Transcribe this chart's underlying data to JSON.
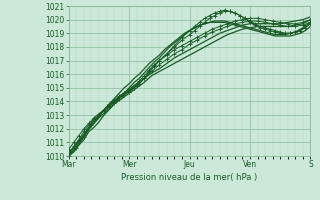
{
  "title": "",
  "xlabel": "Pression niveau de la mer( hPa )",
  "ylim": [
    1010,
    1021
  ],
  "yticks": [
    1010,
    1011,
    1012,
    1013,
    1014,
    1015,
    1016,
    1017,
    1018,
    1019,
    1020,
    1021
  ],
  "day_labels": [
    "Mar",
    "Mer",
    "Jeu",
    "Ven",
    "S"
  ],
  "day_positions": [
    0,
    48,
    96,
    144,
    192
  ],
  "bg_color": "#cce8d8",
  "grid_color_major": "#88bb99",
  "grid_color_minor": "#aad4bc",
  "line_color": "#1a5c28",
  "total_hours": 192,
  "lines": [
    {
      "x": [
        0,
        4,
        8,
        12,
        16,
        20,
        24,
        28,
        32,
        36,
        40,
        44,
        48,
        52,
        56,
        60,
        64,
        68,
        72,
        76,
        80,
        84,
        88,
        92,
        96,
        100,
        104,
        108,
        112,
        116,
        120,
        124,
        128,
        132,
        136,
        140,
        144,
        148,
        152,
        156,
        160,
        164,
        168,
        172,
        176,
        180,
        184,
        188,
        192
      ],
      "y": [
        1010.0,
        1010.3,
        1010.8,
        1011.2,
        1011.8,
        1012.1,
        1012.5,
        1013.0,
        1013.4,
        1013.8,
        1014.2,
        1014.6,
        1015.0,
        1015.4,
        1015.7,
        1016.1,
        1016.5,
        1016.9,
        1017.2,
        1017.6,
        1018.0,
        1018.3,
        1018.6,
        1018.9,
        1019.2,
        1019.4,
        1019.6,
        1019.7,
        1019.8,
        1019.8,
        1019.8,
        1019.8,
        1019.7,
        1019.6,
        1019.5,
        1019.4,
        1019.3,
        1019.2,
        1019.1,
        1019.0,
        1018.9,
        1018.8,
        1018.8,
        1018.8,
        1018.8,
        1018.9,
        1019.0,
        1019.2,
        1019.5
      ],
      "style": "smooth"
    },
    {
      "x": [
        0,
        4,
        8,
        12,
        16,
        20,
        24,
        28,
        32,
        36,
        40,
        44,
        48,
        52,
        56,
        60,
        64,
        68,
        72,
        76,
        80,
        84,
        88,
        92,
        96,
        100,
        104,
        108,
        112,
        116,
        120,
        124,
        128,
        132,
        136,
        140,
        144,
        148,
        152,
        156,
        160,
        164,
        168,
        172,
        176,
        180,
        184,
        188,
        192
      ],
      "y": [
        1010.0,
        1010.4,
        1010.9,
        1011.4,
        1012.0,
        1012.4,
        1012.9,
        1013.4,
        1013.8,
        1014.2,
        1014.6,
        1015.0,
        1015.3,
        1015.7,
        1016.0,
        1016.4,
        1016.8,
        1017.1,
        1017.4,
        1017.8,
        1018.1,
        1018.4,
        1018.7,
        1019.0,
        1019.2,
        1019.4,
        1019.6,
        1019.7,
        1019.8,
        1019.9,
        1019.9,
        1019.9,
        1019.8,
        1019.7,
        1019.6,
        1019.5,
        1019.4,
        1019.3,
        1019.2,
        1019.1,
        1019.0,
        1018.9,
        1018.9,
        1018.9,
        1019.0,
        1019.1,
        1019.3,
        1019.5,
        1019.8
      ],
      "style": "smooth"
    },
    {
      "x": [
        0,
        6,
        12,
        18,
        24,
        30,
        36,
        42,
        48,
        54,
        60,
        66,
        72,
        78,
        84,
        90,
        96,
        102,
        108,
        114,
        120,
        126,
        132,
        138,
        144,
        150,
        156,
        162,
        168,
        174,
        180,
        186,
        192
      ],
      "y": [
        1010.1,
        1010.8,
        1011.5,
        1012.2,
        1012.8,
        1013.3,
        1013.8,
        1014.2,
        1014.6,
        1015.0,
        1015.4,
        1015.9,
        1016.2,
        1016.5,
        1016.8,
        1017.1,
        1017.4,
        1017.7,
        1018.0,
        1018.3,
        1018.6,
        1018.9,
        1019.1,
        1019.3,
        1019.4,
        1019.5,
        1019.5,
        1019.5,
        1019.5,
        1019.5,
        1019.6,
        1019.7,
        1020.0
      ],
      "style": "smooth"
    },
    {
      "x": [
        0,
        6,
        12,
        18,
        24,
        30,
        36,
        42,
        48,
        54,
        60,
        66,
        72,
        78,
        84,
        90,
        96,
        102,
        108,
        114,
        120,
        126,
        132,
        138,
        144,
        150,
        156,
        162,
        168,
        174,
        180,
        186,
        192
      ],
      "y": [
        1010.2,
        1010.9,
        1011.6,
        1012.4,
        1013.0,
        1013.5,
        1014.0,
        1014.5,
        1014.9,
        1015.3,
        1015.7,
        1016.1,
        1016.4,
        1016.8,
        1017.2,
        1017.5,
        1017.8,
        1018.1,
        1018.4,
        1018.7,
        1019.0,
        1019.2,
        1019.4,
        1019.6,
        1019.7,
        1019.7,
        1019.7,
        1019.7,
        1019.7,
        1019.8,
        1019.9,
        1020.0,
        1020.2
      ],
      "style": "smooth"
    },
    {
      "x": [
        0,
        4,
        8,
        12,
        16,
        20,
        24,
        28,
        32,
        36,
        40,
        44,
        48,
        52,
        56,
        60,
        64,
        68,
        72,
        78,
        84,
        90,
        96,
        100,
        104,
        108,
        112,
        116,
        120,
        124,
        128,
        132,
        136,
        140,
        144,
        148,
        152,
        156,
        160,
        164,
        168,
        172,
        176,
        180,
        184,
        188,
        192
      ],
      "y": [
        1010.5,
        1011.0,
        1011.5,
        1012.0,
        1012.4,
        1012.8,
        1013.1,
        1013.4,
        1013.8,
        1014.1,
        1014.4,
        1014.6,
        1014.8,
        1015.0,
        1015.3,
        1015.7,
        1016.2,
        1016.6,
        1017.0,
        1017.5,
        1018.0,
        1018.5,
        1018.9,
        1019.2,
        1019.5,
        1019.8,
        1020.1,
        1020.3,
        1020.5,
        1020.6,
        1020.6,
        1020.5,
        1020.3,
        1020.1,
        1019.8,
        1019.6,
        1019.4,
        1019.3,
        1019.2,
        1019.1,
        1019.0,
        1019.0,
        1019.0,
        1019.1,
        1019.2,
        1019.5,
        1019.8
      ],
      "style": "dotted_marker"
    },
    {
      "x": [
        0,
        4,
        8,
        12,
        16,
        20,
        24,
        28,
        32,
        36,
        40,
        44,
        48,
        52,
        56,
        60,
        64,
        68,
        72,
        78,
        84,
        90,
        96,
        100,
        104,
        108,
        112,
        116,
        120,
        124,
        128,
        132,
        136,
        140,
        144,
        148,
        152,
        156,
        160,
        164,
        168,
        172,
        176,
        180,
        184,
        188,
        192
      ],
      "y": [
        1010.2,
        1010.7,
        1011.2,
        1011.8,
        1012.3,
        1012.7,
        1013.0,
        1013.3,
        1013.6,
        1013.9,
        1014.2,
        1014.5,
        1014.7,
        1015.0,
        1015.3,
        1015.7,
        1016.2,
        1016.6,
        1017.0,
        1017.5,
        1018.1,
        1018.7,
        1019.2,
        1019.5,
        1019.8,
        1020.1,
        1020.3,
        1020.5,
        1020.6,
        1020.7,
        1020.6,
        1020.5,
        1020.3,
        1020.1,
        1019.9,
        1019.7,
        1019.5,
        1019.4,
        1019.3,
        1019.2,
        1019.1,
        1019.0,
        1019.0,
        1019.1,
        1019.2,
        1019.4,
        1019.7
      ],
      "style": "dotted_marker"
    },
    {
      "x": [
        0,
        6,
        12,
        18,
        24,
        30,
        36,
        42,
        48,
        54,
        60,
        66,
        72,
        78,
        84,
        90,
        96,
        102,
        108,
        114,
        120,
        126,
        132,
        138,
        144,
        150,
        156,
        162,
        168,
        174,
        180,
        186,
        192
      ],
      "y": [
        1010.0,
        1010.6,
        1011.4,
        1012.3,
        1013.0,
        1013.6,
        1014.0,
        1014.4,
        1014.7,
        1015.2,
        1015.7,
        1016.2,
        1016.7,
        1017.1,
        1017.5,
        1017.8,
        1018.2,
        1018.5,
        1018.8,
        1019.1,
        1019.3,
        1019.5,
        1019.7,
        1019.8,
        1019.9,
        1019.9,
        1019.8,
        1019.7,
        1019.6,
        1019.5,
        1019.5,
        1019.6,
        1019.8
      ],
      "style": "dotted_marker"
    },
    {
      "x": [
        24,
        28,
        32,
        36,
        40,
        44,
        48,
        52,
        56,
        60,
        64,
        68,
        72,
        78,
        84,
        90,
        96,
        102,
        108,
        114,
        120,
        126,
        132,
        138,
        144,
        150,
        156,
        162,
        168,
        174,
        180,
        186,
        192
      ],
      "y": [
        1013.0,
        1013.3,
        1013.7,
        1014.0,
        1014.3,
        1014.6,
        1014.8,
        1015.1,
        1015.5,
        1015.9,
        1016.3,
        1016.7,
        1017.0,
        1017.4,
        1017.8,
        1018.1,
        1018.4,
        1018.7,
        1019.0,
        1019.3,
        1019.5,
        1019.7,
        1019.9,
        1020.0,
        1020.1,
        1020.1,
        1020.0,
        1019.9,
        1019.8,
        1019.7,
        1019.7,
        1019.8,
        1020.0
      ],
      "style": "dotted_marker"
    }
  ]
}
